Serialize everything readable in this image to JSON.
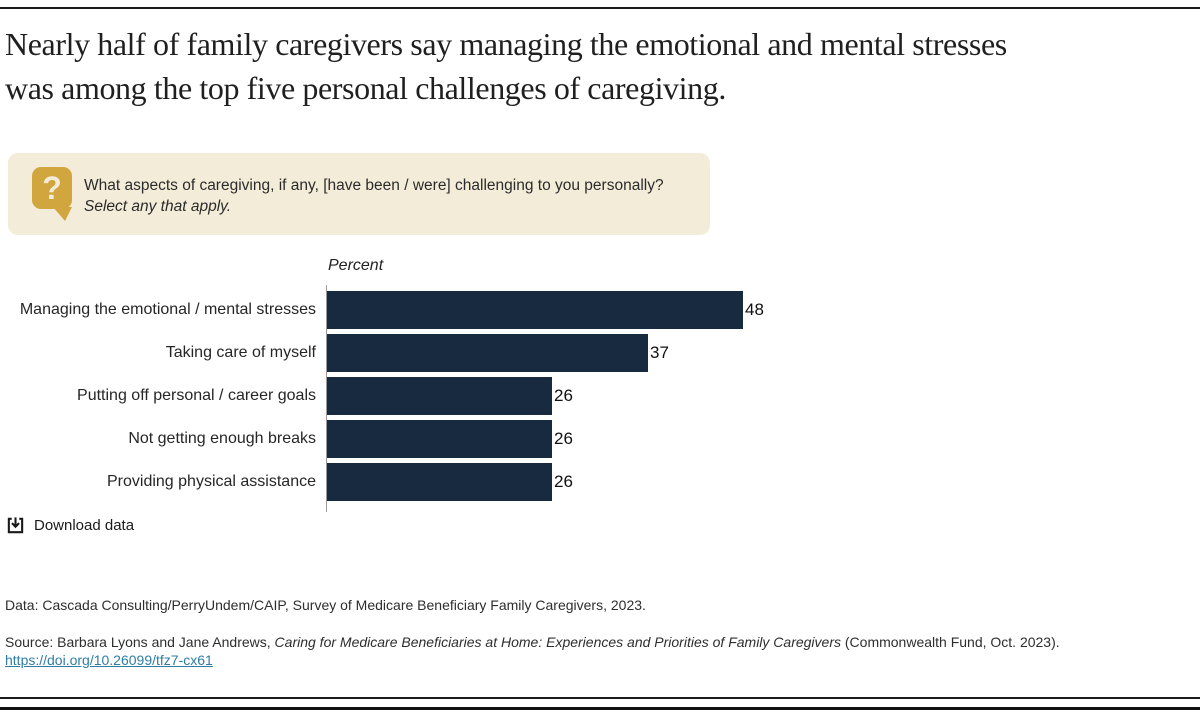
{
  "title": {
    "line1": "Nearly half of family caregivers say managing the emotional and mental stresses",
    "line2": "was among the top five personal challenges of caregiving."
  },
  "question": {
    "line1": "What aspects of caregiving, if any, [have been / were] challenging to you personally?",
    "line2": "Select any that apply."
  },
  "chart_data": {
    "type": "bar",
    "orientation": "horizontal",
    "axis_label": "Percent",
    "categories": [
      "Managing the emotional / mental stresses",
      "Taking care of myself",
      "Putting off personal / career goals",
      "Not getting enough breaks",
      "Providing physical assistance"
    ],
    "values": [
      48,
      37,
      26,
      26,
      26
    ],
    "xlim": [
      0,
      50
    ],
    "grid": false,
    "legend": false,
    "value_labels_shown": true,
    "bar_color": "#172a40"
  },
  "download": {
    "label": "Download data"
  },
  "footer": {
    "data_line": "Data: Cascada Consulting/PerryUndem/CAIP, Survey of Medicare Beneficiary Family Caregivers, 2023.",
    "source_prefix": "Source: Barbara Lyons and Jane Andrews, ",
    "source_italic": "Caring for Medicare Beneficiaries at Home: Experiences and Priorities of Family Caregivers",
    "source_suffix": " (Commonwealth Fund, Oct. 2023).",
    "doi_link": "https://doi.org/10.26099/tfz7-cx61"
  },
  "colors": {
    "bar_navy": "#172a40",
    "accent_gold": "#d1a63f",
    "question_box_bg": "#f3ecd9",
    "link_blue": "#2f7da5",
    "rule_dark": "#1a1a1a"
  }
}
